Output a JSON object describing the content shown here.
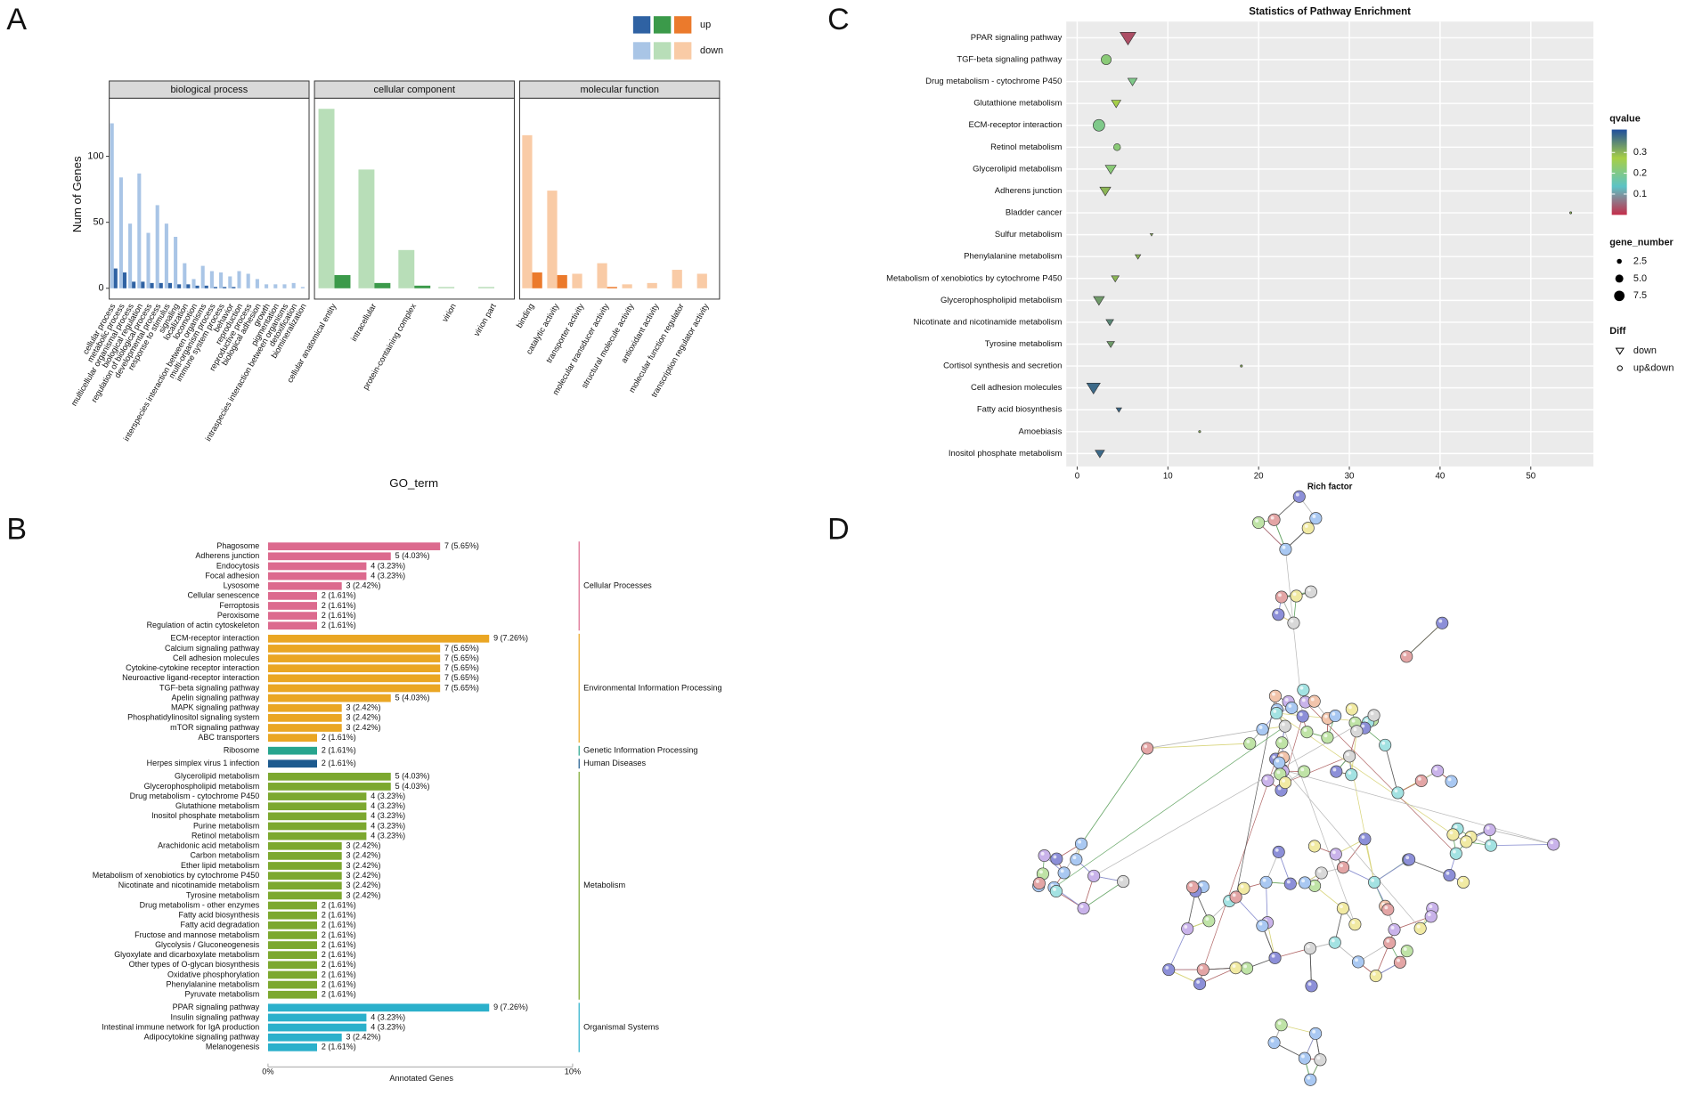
{
  "panel_labels": [
    "A",
    "B",
    "C",
    "D"
  ],
  "chart_data": [
    {
      "type": "bar",
      "series": [
        {
          "name": "up",
          "colors": [
            "#2f62a3",
            "#3b9a4a",
            "#eb7a2c"
          ]
        },
        {
          "name": "down",
          "colors": [
            "#a9c5e6",
            "#b8deb8",
            "#f9cba6"
          ]
        }
      ],
      "y_label": "Num of Genes",
      "x_label": "GO_term",
      "ylim": [
        -8.2,
        144
      ],
      "yticks": [
        0,
        50,
        100
      ],
      "facets": [
        {
          "title": "biological process",
          "categories": [
            "cellular process",
            "metabolic process",
            "multicellular organismal process",
            "biological regulation",
            "regulation of biological process",
            "developmental process",
            "response to stimulus",
            "signaling",
            "localization",
            "locomotion",
            "interspecies interaction between organisms",
            "multi-organism process",
            "immune system process",
            "behavior",
            "reproduction",
            "reproductive process",
            "biological adhesion",
            "growth",
            "pigmentation",
            "intraspecies interaction between organisms",
            "detoxification",
            "biomineralization"
          ],
          "values": [
            [
              15,
              12,
              5,
              5,
              4,
              4,
              4,
              3,
              3,
              2,
              2,
              1,
              1,
              1,
              0,
              0,
              0,
              0,
              0,
              0,
              0,
              0
            ],
            [
              125,
              84,
              49,
              87,
              42,
              63,
              49,
              39,
              19,
              7,
              17,
              13,
              12,
              9,
              13,
              11,
              7,
              3,
              3,
              3,
              4,
              1
            ]
          ]
        },
        {
          "title": "cellular component",
          "categories": [
            "cellular anatomical entity",
            "intracellular",
            "protein-containing complex",
            "virion",
            "virion part"
          ],
          "values": [
            [
              10,
              4,
              2,
              0,
              0
            ],
            [
              136,
              90,
              29,
              1,
              1
            ]
          ]
        },
        {
          "title": "molecular function",
          "categories": [
            "binding",
            "catalytic activity",
            "transporter activity",
            "molecular transducer activity",
            "structural molecule activity",
            "antioxidant activity",
            "molecular function regulator",
            "transcription regulator activity"
          ],
          "values": [
            [
              12,
              10,
              0,
              1,
              0,
              0,
              0,
              0
            ],
            [
              116,
              74,
              11,
              19,
              3,
              4,
              14,
              11
            ]
          ]
        }
      ]
    },
    {
      "type": "hbar",
      "x_label": "Annotated Genes",
      "xlim": [
        0,
        10
      ],
      "xticks": [
        {
          "value": 0,
          "label": "0%"
        },
        {
          "value": 10,
          "label": "10%"
        }
      ],
      "groups": [
        {
          "name": "Cellular Processes",
          "color": "#dc6a8e",
          "categories": [
            "Phagosome",
            "Adherens junction",
            "Endocytosis",
            "Focal adhesion",
            "Lysosome",
            "Cellular senescence",
            "Ferroptosis",
            "Peroxisome",
            "Regulation of actin cytoskeleton"
          ],
          "values": [
            5.65,
            4.03,
            3.23,
            3.23,
            2.42,
            1.61,
            1.61,
            1.61,
            1.61
          ],
          "value_labels": [
            "7 (5.65%)",
            "5 (4.03%)",
            "4 (3.23%)",
            "4 (3.23%)",
            "3 (2.42%)",
            "2 (1.61%)",
            "2 (1.61%)",
            "2 (1.61%)",
            "2 (1.61%)"
          ]
        },
        {
          "name": "Environmental Information Processing",
          "color": "#eaa623",
          "categories": [
            "ECM-receptor interaction",
            "Calcium signaling pathway",
            "Cell adhesion molecules",
            "Cytokine-cytokine receptor interaction",
            "Neuroactive ligand-receptor interaction",
            "TGF-beta signaling pathway",
            "Apelin signaling pathway",
            "MAPK signaling pathway",
            "Phosphatidylinositol signaling system",
            "mTOR signaling pathway",
            "ABC transporters"
          ],
          "values": [
            7.26,
            5.65,
            5.65,
            5.65,
            5.65,
            5.65,
            4.03,
            2.42,
            2.42,
            2.42,
            1.61
          ],
          "value_labels": [
            "9 (7.26%)",
            "7 (5.65%)",
            "7 (5.65%)",
            "7 (5.65%)",
            "7 (5.65%)",
            "7 (5.65%)",
            "5 (4.03%)",
            "3 (2.42%)",
            "3 (2.42%)",
            "3 (2.42%)",
            "2 (1.61%)"
          ]
        },
        {
          "name": "Genetic Information Processing",
          "color": "#27a58e",
          "categories": [
            "Ribosome"
          ],
          "values": [
            1.61
          ],
          "value_labels": [
            "2 (1.61%)"
          ]
        },
        {
          "name": "Human Diseases",
          "color": "#1d5a8e",
          "categories": [
            "Herpes simplex virus 1 infection"
          ],
          "values": [
            1.61
          ],
          "value_labels": [
            "2 (1.61%)"
          ]
        },
        {
          "name": "Metabolism",
          "color": "#7ca82f",
          "categories": [
            "Glycerolipid metabolism",
            "Glycerophospholipid metabolism",
            "Drug metabolism - cytochrome P450",
            "Glutathione metabolism",
            "Inositol phosphate metabolism",
            "Purine metabolism",
            "Retinol metabolism",
            "Arachidonic acid metabolism",
            "Carbon metabolism",
            "Ether lipid metabolism",
            "Metabolism of xenobiotics by cytochrome P450",
            "Nicotinate and nicotinamide metabolism",
            "Tyrosine metabolism",
            "Drug metabolism - other enzymes",
            "Fatty acid biosynthesis",
            "Fatty acid degradation",
            "Fructose and mannose metabolism",
            "Glycolysis / Gluconeogenesis",
            "Glyoxylate and dicarboxylate metabolism",
            "Other types of O-glycan biosynthesis",
            "Oxidative phosphorylation",
            "Phenylalanine metabolism",
            "Pyruvate metabolism"
          ],
          "values": [
            4.03,
            4.03,
            3.23,
            3.23,
            3.23,
            3.23,
            3.23,
            2.42,
            2.42,
            2.42,
            2.42,
            2.42,
            2.42,
            1.61,
            1.61,
            1.61,
            1.61,
            1.61,
            1.61,
            1.61,
            1.61,
            1.61,
            1.61
          ],
          "value_labels": [
            "5 (4.03%)",
            "5 (4.03%)",
            "4 (3.23%)",
            "4 (3.23%)",
            "4 (3.23%)",
            "4 (3.23%)",
            "4 (3.23%)",
            "3 (2.42%)",
            "3 (2.42%)",
            "3 (2.42%)",
            "3 (2.42%)",
            "3 (2.42%)",
            "3 (2.42%)",
            "2 (1.61%)",
            "2 (1.61%)",
            "2 (1.61%)",
            "2 (1.61%)",
            "2 (1.61%)",
            "2 (1.61%)",
            "2 (1.61%)",
            "2 (1.61%)",
            "2 (1.61%)",
            "2 (1.61%)"
          ]
        },
        {
          "name": "Organismal Systems",
          "color": "#2bb0cb",
          "categories": [
            "PPAR signaling pathway",
            "Insulin signaling pathway",
            "Intestinal immune network for IgA production",
            "Adipocytokine signaling pathway",
            "Melanogenesis"
          ],
          "values": [
            7.26,
            3.23,
            3.23,
            2.42,
            1.61
          ],
          "value_labels": [
            "9 (7.26%)",
            "4 (3.23%)",
            "4 (3.23%)",
            "3 (2.42%)",
            "2 (1.61%)"
          ]
        }
      ]
    },
    {
      "type": "bubble",
      "title": "Statistics of Pathway Enrichment",
      "x_label": "Rich factor",
      "xlim": [
        -1.2,
        56.9
      ],
      "xticks": [
        0,
        10,
        20,
        30,
        40,
        50
      ],
      "categories": [
        "PPAR signaling pathway",
        "TGF-beta signaling pathway",
        "Drug metabolism - cytochrome P450",
        "Glutathione metabolism",
        "ECM-receptor interaction",
        "Retinol metabolism",
        "Glycerolipid metabolism",
        "Adherens junction",
        "Bladder cancer",
        "Sulfur metabolism",
        "Phenylalanine metabolism",
        "Metabolism of xenobiotics by cytochrome P450",
        "Glycerophospholipid metabolism",
        "Nicotinate and nicotinamide metabolism",
        "Tyrosine metabolism",
        "Cortisol synthesis and secretion",
        "Cell adhesion molecules",
        "Fatty acid biosynthesis",
        "Amoebiasis",
        "Inositol phosphate metabolism"
      ],
      "x": [
        5.6,
        3.2,
        6.1,
        4.3,
        2.4,
        4.4,
        3.7,
        3.1,
        54.4,
        8.2,
        6.7,
        4.2,
        2.4,
        3.6,
        3.7,
        18.1,
        1.8,
        4.6,
        13.5,
        2.5
      ],
      "qvalue": [
        0.03,
        0.22,
        0.2,
        0.27,
        0.2,
        0.22,
        0.22,
        0.3,
        0.3,
        0.3,
        0.3,
        0.3,
        0.33,
        0.35,
        0.33,
        0.3,
        0.38,
        0.38,
        0.3,
        0.38
      ],
      "gene_number": [
        9,
        7,
        4,
        4,
        9,
        4,
        5,
        5,
        1,
        1,
        2,
        3,
        5,
        3,
        3,
        1,
        7,
        2,
        1,
        4
      ],
      "diff": [
        "down",
        "up&down",
        "down",
        "down",
        "up&down",
        "up&down",
        "down",
        "down",
        "up&down",
        "down",
        "down",
        "down",
        "down",
        "down",
        "down",
        "up&down",
        "down",
        "down",
        "up&down",
        "down"
      ],
      "qvalue_legend": {
        "title": "qvalue",
        "lim": [
          0,
          0.41
        ],
        "ticks": [
          0.1,
          0.2,
          0.3
        ],
        "colors": [
          "#c42d4a",
          "#5cc3c6",
          "#a7cf45",
          "#1f4e9c"
        ]
      },
      "gene_number_legend": {
        "title": "gene_number",
        "ticks": [
          2.5,
          {
            "value": 5,
            "label": "5.0"
          },
          {
            "value": 7.5,
            "label": "7.5"
          }
        ]
      },
      "diff_legend": {
        "title": "Diff",
        "labels": [
          "down",
          "up&down"
        ]
      }
    }
  ]
}
